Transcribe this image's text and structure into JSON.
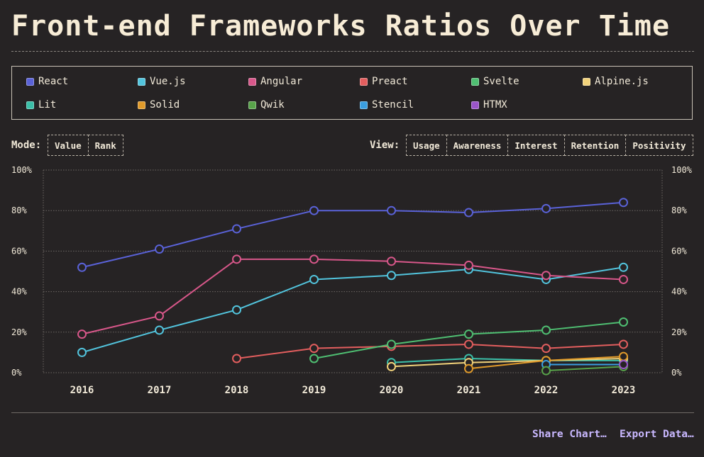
{
  "title": "Front-end Frameworks Ratios Over Time",
  "legend": [
    {
      "name": "React",
      "color": "#5a62d8"
    },
    {
      "name": "Vue.js",
      "color": "#52c4dd"
    },
    {
      "name": "Angular",
      "color": "#d8578a"
    },
    {
      "name": "Preact",
      "color": "#e35e5e"
    },
    {
      "name": "Svelte",
      "color": "#4fbf72"
    },
    {
      "name": "Alpine.js",
      "color": "#f1d27a"
    },
    {
      "name": "Lit",
      "color": "#3bbfa8"
    },
    {
      "name": "Solid",
      "color": "#e09a2a"
    },
    {
      "name": "Qwik",
      "color": "#58a34a"
    },
    {
      "name": "Stencil",
      "color": "#3a9ee0"
    },
    {
      "name": "HTMX",
      "color": "#9a55c8"
    }
  ],
  "controls": {
    "mode_label": "Mode:",
    "mode_buttons": [
      "Value",
      "Rank"
    ],
    "view_label": "View:",
    "view_buttons": [
      "Usage",
      "Awareness",
      "Interest",
      "Retention",
      "Positivity"
    ]
  },
  "footer": {
    "share": "Share Chart…",
    "export": "Export Data…"
  },
  "chart_data": {
    "type": "line",
    "x": [
      "2016",
      "2017",
      "2018",
      "2019",
      "2020",
      "2021",
      "2022",
      "2023"
    ],
    "ylim": [
      0,
      100
    ],
    "yticks": [
      "0%",
      "20%",
      "40%",
      "60%",
      "80%",
      "100%"
    ],
    "grid": true,
    "series": [
      {
        "name": "React",
        "color": "#5a62d8",
        "values": [
          52,
          61,
          71,
          80,
          80,
          79,
          81,
          84
        ]
      },
      {
        "name": "Vue.js",
        "color": "#52c4dd",
        "values": [
          10,
          21,
          31,
          46,
          48,
          51,
          46,
          52
        ]
      },
      {
        "name": "Angular",
        "color": "#d8578a",
        "values": [
          19,
          28,
          56,
          56,
          55,
          53,
          48,
          46
        ]
      },
      {
        "name": "Preact",
        "color": "#e35e5e",
        "values": [
          null,
          null,
          7,
          12,
          13,
          14,
          12,
          14
        ]
      },
      {
        "name": "Svelte",
        "color": "#4fbf72",
        "values": [
          null,
          null,
          null,
          7,
          14,
          19,
          21,
          25
        ]
      },
      {
        "name": "Lit",
        "color": "#3bbfa8",
        "values": [
          null,
          null,
          null,
          null,
          5,
          7,
          6,
          6
        ]
      },
      {
        "name": "Alpine.js",
        "color": "#f1d27a",
        "values": [
          null,
          null,
          null,
          null,
          3,
          5,
          6,
          7
        ]
      },
      {
        "name": "Solid",
        "color": "#e09a2a",
        "values": [
          null,
          null,
          null,
          null,
          null,
          2,
          6,
          8
        ]
      },
      {
        "name": "Stencil",
        "color": "#3a9ee0",
        "values": [
          null,
          null,
          null,
          null,
          null,
          null,
          4,
          4
        ]
      },
      {
        "name": "Qwik",
        "color": "#58a34a",
        "values": [
          null,
          null,
          null,
          null,
          null,
          null,
          1,
          3
        ]
      },
      {
        "name": "HTMX",
        "color": "#9a55c8",
        "values": [
          null,
          null,
          null,
          null,
          null,
          null,
          null,
          4
        ]
      }
    ]
  }
}
